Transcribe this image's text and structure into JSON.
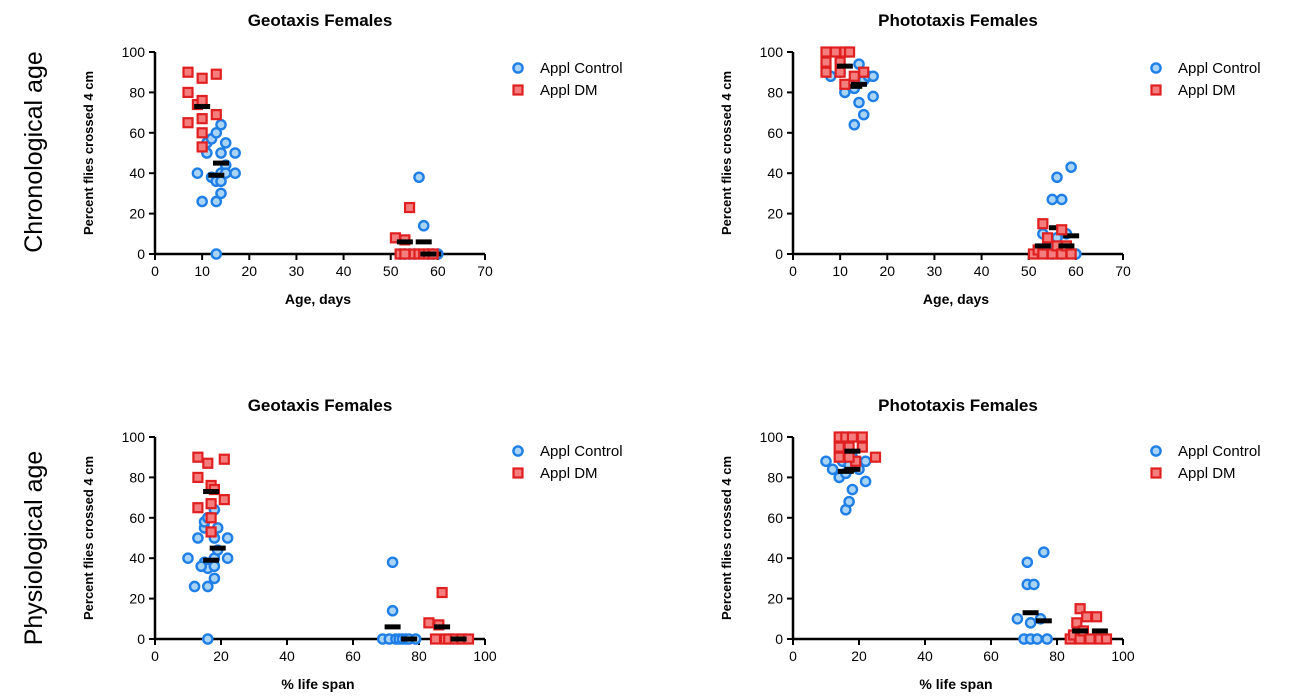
{
  "row_labels": [
    "Chronological age",
    "Physiological age"
  ],
  "colors": {
    "control_fill": "#a9d4f5",
    "control_edge": "#1f7fe6",
    "dm_fill": "#f47d7d",
    "dm_edge": "#e02020",
    "mean": "#000000"
  },
  "chart_data": [
    {
      "type": "scatter",
      "title": "Geotaxis Females",
      "xlabel": "Age, days",
      "ylabel": "Percent flies crossed 4 cm",
      "xlim": [
        0,
        70
      ],
      "ylim": [
        0,
        100
      ],
      "xticks": [
        "0",
        "10",
        "20",
        "30",
        "40",
        "50",
        "60",
        "70"
      ],
      "yticks": [
        "0",
        "20",
        "40",
        "60",
        "80",
        "100"
      ],
      "legend": "top-right",
      "series": [
        {
          "name": "Appl Control",
          "marker": "circle",
          "points": [
            [
              9,
              40
            ],
            [
              10,
              26
            ],
            [
              11,
              50
            ],
            [
              11,
              55
            ],
            [
              12,
              38
            ],
            [
              12,
              57
            ],
            [
              13,
              60
            ],
            [
              13,
              36
            ],
            [
              13,
              26
            ],
            [
              13,
              0
            ],
            [
              14,
              64
            ],
            [
              14,
              50
            ],
            [
              14,
              40
            ],
            [
              14,
              36
            ],
            [
              14,
              30
            ],
            [
              15,
              55
            ],
            [
              15,
              44
            ],
            [
              15,
              40
            ],
            [
              17,
              50
            ],
            [
              17,
              40
            ]
          ],
          "means": [
            [
              13,
              39
            ],
            [
              14,
              45
            ]
          ]
        },
        {
          "name": "Appl DM",
          "marker": "square",
          "points": [
            [
              7,
              90
            ],
            [
              7,
              80
            ],
            [
              7,
              65
            ],
            [
              9,
              74
            ],
            [
              10,
              87
            ],
            [
              10,
              76
            ],
            [
              10,
              67
            ],
            [
              10,
              60
            ],
            [
              10,
              53
            ],
            [
              13,
              89
            ],
            [
              13,
              69
            ]
          ],
          "means": [
            [
              10,
              73
            ]
          ]
        },
        {
          "name": "Appl Control",
          "marker": "circle",
          "points": [
            [
              52,
              0
            ],
            [
              53,
              0
            ],
            [
              54,
              0
            ],
            [
              55,
              0
            ],
            [
              56,
              38
            ],
            [
              57,
              14
            ],
            [
              58,
              0
            ],
            [
              59,
              0
            ],
            [
              60,
              0
            ]
          ],
          "means": [
            [
              57,
              6
            ],
            [
              59,
              0
            ]
          ]
        },
        {
          "name": "Appl DM",
          "marker": "square",
          "points": [
            [
              51,
              8
            ],
            [
              52,
              0
            ],
            [
              53,
              7
            ],
            [
              53,
              0
            ],
            [
              54,
              23
            ],
            [
              55,
              0
            ],
            [
              56,
              0
            ],
            [
              57,
              0
            ],
            [
              58,
              0
            ],
            [
              59,
              0
            ]
          ],
          "means": [
            [
              53,
              6
            ],
            [
              58,
              0
            ]
          ]
        }
      ]
    },
    {
      "type": "scatter",
      "title": "Phototaxis Females",
      "xlabel": "Age, days",
      "ylabel": "Percent flies crossed 4 cm",
      "xlim": [
        0,
        70
      ],
      "ylim": [
        0,
        100
      ],
      "xticks": [
        "0",
        "10",
        "20",
        "30",
        "40",
        "50",
        "60",
        "70"
      ],
      "yticks": [
        "0",
        "20",
        "40",
        "60",
        "80",
        "100"
      ],
      "legend": "top-right",
      "series": [
        {
          "name": "Appl Control",
          "marker": "circle",
          "points": [
            [
              8,
              88
            ],
            [
              10,
              90
            ],
            [
              11,
              80
            ],
            [
              12,
              84
            ],
            [
              13,
              64
            ],
            [
              13,
              82
            ],
            [
              14,
              94
            ],
            [
              14,
              75
            ],
            [
              15,
              86
            ],
            [
              15,
              69
            ],
            [
              16,
              88
            ],
            [
              17,
              88
            ],
            [
              17,
              78
            ]
          ],
          "means": [
            [
              13,
              83
            ],
            [
              14,
              84
            ]
          ]
        },
        {
          "name": "Appl DM",
          "marker": "square",
          "points": [
            [
              7,
              100
            ],
            [
              7,
              95
            ],
            [
              7,
              90
            ],
            [
              9,
              100
            ],
            [
              10,
              95
            ],
            [
              10,
              90
            ],
            [
              11,
              100
            ],
            [
              12,
              100
            ],
            [
              13,
              88
            ],
            [
              15,
              90
            ],
            [
              11,
              84
            ]
          ],
          "means": [
            [
              11,
              93
            ]
          ]
        },
        {
          "name": "Appl Control",
          "marker": "circle",
          "points": [
            [
              53,
              10
            ],
            [
              54,
              4
            ],
            [
              55,
              27
            ],
            [
              55,
              0
            ],
            [
              56,
              38
            ],
            [
              56,
              8
            ],
            [
              57,
              27
            ],
            [
              57,
              0
            ],
            [
              58,
              10
            ],
            [
              59,
              43
            ],
            [
              60,
              0
            ]
          ],
          "means": [
            [
              56,
              13
            ],
            [
              59,
              9
            ]
          ]
        },
        {
          "name": "Appl DM",
          "marker": "square",
          "points": [
            [
              51,
              0
            ],
            [
              52,
              2
            ],
            [
              53,
              15
            ],
            [
              53,
              0
            ],
            [
              54,
              8
            ],
            [
              55,
              0
            ],
            [
              56,
              4
            ],
            [
              57,
              12
            ],
            [
              57,
              0
            ],
            [
              58,
              4
            ],
            [
              59,
              0
            ]
          ],
          "means": [
            [
              53,
              4
            ],
            [
              58,
              4
            ]
          ]
        }
      ]
    },
    {
      "type": "scatter",
      "title": "Geotaxis Females",
      "xlabel": "% life span",
      "ylabel": "Percent flies crossed 4 cm",
      "xlim": [
        0,
        100
      ],
      "ylim": [
        0,
        100
      ],
      "xticks": [
        "0",
        "20",
        "40",
        "60",
        "80",
        "100"
      ],
      "yticks": [
        "0",
        "20",
        "40",
        "60",
        "80",
        "100"
      ],
      "legend": "top-right",
      "series": [
        {
          "name": "Appl Control",
          "marker": "circle",
          "points": [
            [
              10,
              40
            ],
            [
              12,
              26
            ],
            [
              13,
              50
            ],
            [
              15,
              55
            ],
            [
              15,
              38
            ],
            [
              15,
              58
            ],
            [
              16,
              60
            ],
            [
              16,
              35
            ],
            [
              16,
              26
            ],
            [
              16,
              0
            ],
            [
              18,
              64
            ],
            [
              18,
              50
            ],
            [
              18,
              40
            ],
            [
              18,
              36
            ],
            [
              18,
              30
            ],
            [
              19,
              55
            ],
            [
              19,
              44
            ],
            [
              22,
              50
            ],
            [
              22,
              40
            ],
            [
              14,
              36
            ]
          ],
          "means": [
            [
              17,
              39
            ],
            [
              19,
              45
            ]
          ]
        },
        {
          "name": "Appl DM",
          "marker": "square",
          "points": [
            [
              13,
              90
            ],
            [
              13,
              80
            ],
            [
              13,
              65
            ],
            [
              16,
              87
            ],
            [
              17,
              76
            ],
            [
              17,
              67
            ],
            [
              17,
              60
            ],
            [
              17,
              53
            ],
            [
              18,
              74
            ],
            [
              21,
              89
            ],
            [
              21,
              69
            ]
          ],
          "means": [
            [
              17,
              73
            ]
          ]
        },
        {
          "name": "Appl Control",
          "marker": "circle",
          "points": [
            [
              69,
              0
            ],
            [
              71,
              0
            ],
            [
              72,
              38
            ],
            [
              72,
              14
            ],
            [
              73,
              0
            ],
            [
              74,
              0
            ],
            [
              75,
              0
            ],
            [
              76,
              0
            ],
            [
              77,
              0
            ],
            [
              79,
              0
            ]
          ],
          "means": [
            [
              72,
              6
            ],
            [
              77,
              0
            ]
          ]
        },
        {
          "name": "Appl DM",
          "marker": "square",
          "points": [
            [
              83,
              8
            ],
            [
              85,
              0
            ],
            [
              86,
              7
            ],
            [
              87,
              23
            ],
            [
              88,
              0
            ],
            [
              89,
              0
            ],
            [
              91,
              0
            ],
            [
              93,
              0
            ],
            [
              95,
              0
            ]
          ],
          "means": [
            [
              87,
              6
            ],
            [
              92,
              0
            ]
          ]
        }
      ]
    },
    {
      "type": "scatter",
      "title": "Phototaxis Females",
      "xlabel": "% life span",
      "ylabel": "Percent flies crossed 4 cm",
      "xlim": [
        0,
        100
      ],
      "ylim": [
        0,
        100
      ],
      "xticks": [
        "0",
        "20",
        "40",
        "60",
        "80",
        "100"
      ],
      "yticks": [
        "0",
        "20",
        "40",
        "60",
        "80",
        "100"
      ],
      "legend": "top-right",
      "series": [
        {
          "name": "Appl Control",
          "marker": "circle",
          "points": [
            [
              10,
              88
            ],
            [
              12,
              84
            ],
            [
              14,
              80
            ],
            [
              15,
              88
            ],
            [
              16,
              64
            ],
            [
              16,
              82
            ],
            [
              17,
              86
            ],
            [
              17,
              68
            ],
            [
              18,
              74
            ],
            [
              18,
              90
            ],
            [
              20,
              84
            ],
            [
              22,
              88
            ],
            [
              22,
              78
            ]
          ],
          "means": [
            [
              16,
              83
            ],
            [
              18,
              84
            ]
          ]
        },
        {
          "name": "Appl DM",
          "marker": "square",
          "points": [
            [
              14,
              100
            ],
            [
              14,
              95
            ],
            [
              14,
              90
            ],
            [
              16,
              100
            ],
            [
              17,
              95
            ],
            [
              18,
              100
            ],
            [
              19,
              88
            ],
            [
              21,
              100
            ],
            [
              21,
              95
            ],
            [
              25,
              90
            ],
            [
              17,
              90
            ]
          ],
          "means": [
            [
              18,
              93
            ]
          ]
        },
        {
          "name": "Appl Control",
          "marker": "circle",
          "points": [
            [
              68,
              10
            ],
            [
              70,
              0
            ],
            [
              71,
              38
            ],
            [
              71,
              27
            ],
            [
              72,
              8
            ],
            [
              72,
              0
            ],
            [
              73,
              27
            ],
            [
              74,
              0
            ],
            [
              75,
              10
            ],
            [
              76,
              43
            ],
            [
              77,
              0
            ]
          ],
          "means": [
            [
              72,
              13
            ],
            [
              76,
              9
            ]
          ]
        },
        {
          "name": "Appl DM",
          "marker": "square",
          "points": [
            [
              84,
              0
            ],
            [
              85,
              2
            ],
            [
              86,
              8
            ],
            [
              87,
              15
            ],
            [
              87,
              0
            ],
            [
              88,
              4
            ],
            [
              89,
              11
            ],
            [
              90,
              0
            ],
            [
              92,
              11
            ],
            [
              93,
              0
            ],
            [
              95,
              0
            ]
          ],
          "means": [
            [
              87,
              4
            ],
            [
              93,
              4
            ]
          ]
        }
      ]
    }
  ]
}
